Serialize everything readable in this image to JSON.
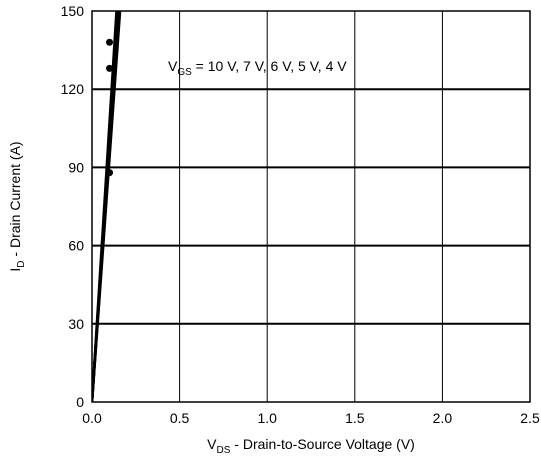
{
  "chart_data": {
    "type": "line",
    "title": "",
    "xlabel": {
      "main": "V",
      "sub": "DS",
      "rest": " - Drain-to-Source Voltage (V)"
    },
    "ylabel": {
      "main": "I",
      "sub": "D",
      "rest": " - Drain Current (A)"
    },
    "xlim": [
      0,
      2.5
    ],
    "ylim": [
      0,
      150
    ],
    "xticks": [
      0,
      0.5,
      1,
      1.5,
      2,
      2.5
    ],
    "xtick_labels": [
      "0.0",
      "0.5",
      "1.0",
      "1.5",
      "2.0",
      "2.5"
    ],
    "yticks": [
      0,
      30,
      60,
      90,
      120,
      150
    ],
    "ytick_labels": [
      "0",
      "30",
      "60",
      "90",
      "120",
      "150"
    ],
    "grid": true,
    "annotation": {
      "main": "V",
      "sub": "GS",
      "rest": " = 10 V, 7 V, 6 V, 5 V, 4 V"
    },
    "series": [
      {
        "values": [
          [
            0,
            0
          ],
          [
            0.14,
            150
          ]
        ]
      },
      {
        "values": [
          [
            0,
            0
          ],
          [
            0.145,
            150
          ]
        ]
      },
      {
        "values": [
          [
            0,
            0
          ],
          [
            0.15,
            150
          ]
        ]
      },
      {
        "values": [
          [
            0,
            0
          ],
          [
            0.155,
            150
          ]
        ]
      },
      {
        "values": [
          [
            0,
            0
          ],
          [
            0.16,
            150
          ]
        ]
      }
    ],
    "markers": [
      {
        "x": 0.1,
        "y": 138
      },
      {
        "x": 0.1,
        "y": 128
      },
      {
        "x": 0.1,
        "y": 88
      }
    ],
    "colors": {
      "line": "#000000",
      "grid": "#000000",
      "background": "#ffffff"
    }
  }
}
